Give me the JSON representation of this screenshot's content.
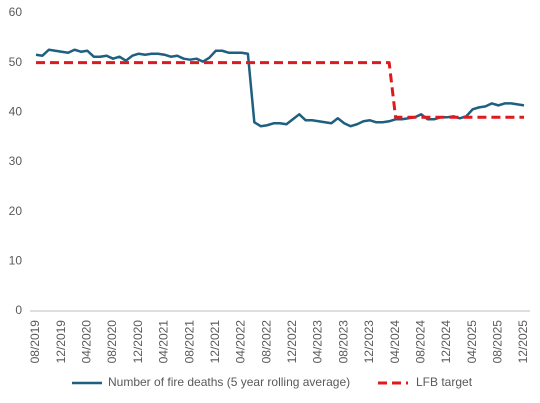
{
  "chart_data": {
    "type": "line",
    "categories": [
      "08/2019",
      null,
      null,
      null,
      "12/2019",
      null,
      null,
      null,
      "04/2020",
      null,
      null,
      null,
      "08/2020",
      null,
      null,
      null,
      "12/2020",
      null,
      null,
      null,
      "04/2021",
      null,
      null,
      null,
      "08/2021",
      null,
      null,
      null,
      "12/2021",
      null,
      null,
      null,
      "04/2022",
      null,
      null,
      null,
      "08/2022",
      null,
      null,
      null,
      "12/2022",
      null,
      null,
      null,
      "04/2023",
      null,
      null,
      null,
      "08/2023",
      null,
      null,
      null,
      "12/2023",
      null,
      null,
      null,
      "04/2024",
      null,
      null,
      null,
      "08/2024",
      null,
      null,
      null,
      "12/2024",
      null,
      null,
      null,
      "04/2025",
      null,
      null,
      null,
      "08/2025",
      null,
      null,
      null,
      "12/2025"
    ],
    "series": [
      {
        "name": "Number of fire deaths (5 year rolling average)",
        "color": "#1f5f7f",
        "dashed": false,
        "values": [
          51.6,
          51.4,
          52.6,
          52.4,
          52.2,
          52.0,
          52.6,
          52.2,
          52.4,
          51.2,
          51.2,
          51.4,
          50.8,
          51.2,
          50.4,
          51.4,
          51.8,
          51.6,
          51.8,
          51.8,
          51.6,
          51.2,
          51.4,
          50.8,
          50.6,
          50.8,
          50.2,
          51.0,
          52.4,
          52.4,
          52.0,
          52.0,
          52.0,
          51.8,
          38.0,
          37.2,
          37.4,
          37.8,
          37.8,
          37.6,
          38.6,
          39.6,
          38.4,
          38.4,
          38.2,
          38.0,
          37.8,
          38.8,
          37.8,
          37.2,
          37.6,
          38.2,
          38.4,
          38.0,
          38.0,
          38.2,
          38.6,
          38.6,
          38.8,
          39.0,
          39.6,
          38.6,
          38.6,
          39.0,
          39.0,
          39.2,
          38.8,
          39.2,
          40.6,
          41.0,
          41.2,
          41.8,
          41.4,
          41.8,
          41.8,
          41.6,
          41.4
        ]
      },
      {
        "name": "LFB target",
        "color": "#e0191f",
        "dashed": true,
        "values": [
          50,
          50,
          50,
          50,
          50,
          50,
          50,
          50,
          50,
          50,
          50,
          50,
          50,
          50,
          50,
          50,
          50,
          50,
          50,
          50,
          50,
          50,
          50,
          50,
          50,
          50,
          50,
          50,
          50,
          50,
          50,
          50,
          50,
          50,
          50,
          50,
          50,
          50,
          50,
          50,
          50,
          50,
          50,
          50,
          50,
          50,
          50,
          50,
          50,
          50,
          50,
          50,
          50,
          50,
          50,
          50,
          39,
          39,
          39,
          39,
          39,
          39,
          39,
          39,
          39,
          39,
          39,
          39,
          39,
          39,
          39,
          39,
          39,
          39,
          39,
          39,
          39
        ]
      }
    ],
    "ylim": [
      0,
      60
    ],
    "yticks": [
      0,
      10,
      20,
      30,
      40,
      50,
      60
    ],
    "grid": false,
    "legend": "bottom"
  }
}
